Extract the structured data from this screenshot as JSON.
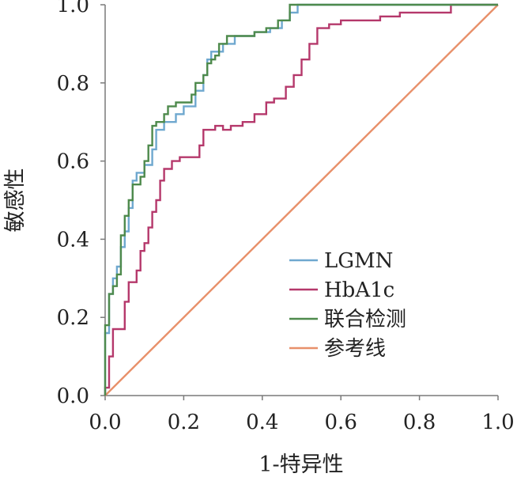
{
  "chart_data": {
    "type": "line",
    "title": "",
    "xlabel": "1-特异性",
    "ylabel": "敏感性",
    "xlim": [
      0,
      1
    ],
    "ylim": [
      0,
      1
    ],
    "x_ticks": [
      "0.0",
      "0.2",
      "0.4",
      "0.6",
      "0.8",
      "1.0"
    ],
    "y_ticks": [
      "0.0",
      "0.2",
      "0.4",
      "0.6",
      "0.8",
      "1.0"
    ],
    "grid": false,
    "legend_position": "bottom-right",
    "series": [
      {
        "name": "LGMN",
        "color": "#6fa8cf",
        "points": [
          [
            0,
            0
          ],
          [
            0,
            0.16
          ],
          [
            0.01,
            0.16
          ],
          [
            0.01,
            0.26
          ],
          [
            0.02,
            0.26
          ],
          [
            0.02,
            0.3
          ],
          [
            0.03,
            0.3
          ],
          [
            0.03,
            0.33
          ],
          [
            0.04,
            0.33
          ],
          [
            0.04,
            0.38
          ],
          [
            0.05,
            0.38
          ],
          [
            0.05,
            0.42
          ],
          [
            0.06,
            0.42
          ],
          [
            0.06,
            0.48
          ],
          [
            0.07,
            0.48
          ],
          [
            0.07,
            0.55
          ],
          [
            0.08,
            0.55
          ],
          [
            0.08,
            0.57
          ],
          [
            0.1,
            0.57
          ],
          [
            0.1,
            0.59
          ],
          [
            0.12,
            0.59
          ],
          [
            0.12,
            0.63
          ],
          [
            0.13,
            0.63
          ],
          [
            0.13,
            0.68
          ],
          [
            0.15,
            0.68
          ],
          [
            0.15,
            0.7
          ],
          [
            0.18,
            0.7
          ],
          [
            0.18,
            0.72
          ],
          [
            0.2,
            0.72
          ],
          [
            0.2,
            0.74
          ],
          [
            0.23,
            0.74
          ],
          [
            0.23,
            0.78
          ],
          [
            0.25,
            0.78
          ],
          [
            0.25,
            0.82
          ],
          [
            0.26,
            0.82
          ],
          [
            0.26,
            0.86
          ],
          [
            0.27,
            0.86
          ],
          [
            0.27,
            0.88
          ],
          [
            0.3,
            0.88
          ],
          [
            0.3,
            0.9
          ],
          [
            0.33,
            0.9
          ],
          [
            0.33,
            0.92
          ],
          [
            0.38,
            0.92
          ],
          [
            0.38,
            0.93
          ],
          [
            0.42,
            0.93
          ],
          [
            0.42,
            0.94
          ],
          [
            0.45,
            0.94
          ],
          [
            0.45,
            0.96
          ],
          [
            0.47,
            0.96
          ],
          [
            0.47,
            0.98
          ],
          [
            0.49,
            0.98
          ],
          [
            0.49,
            1.0
          ],
          [
            1.0,
            1.0
          ]
        ]
      },
      {
        "name": "HbA1c",
        "color": "#b5386b",
        "points": [
          [
            0,
            0
          ],
          [
            0,
            0.02
          ],
          [
            0.01,
            0.02
          ],
          [
            0.01,
            0.1
          ],
          [
            0.02,
            0.1
          ],
          [
            0.02,
            0.17
          ],
          [
            0.05,
            0.17
          ],
          [
            0.05,
            0.24
          ],
          [
            0.06,
            0.24
          ],
          [
            0.06,
            0.29
          ],
          [
            0.08,
            0.29
          ],
          [
            0.08,
            0.32
          ],
          [
            0.09,
            0.32
          ],
          [
            0.09,
            0.37
          ],
          [
            0.1,
            0.37
          ],
          [
            0.1,
            0.39
          ],
          [
            0.11,
            0.39
          ],
          [
            0.11,
            0.43
          ],
          [
            0.12,
            0.43
          ],
          [
            0.12,
            0.47
          ],
          [
            0.13,
            0.47
          ],
          [
            0.13,
            0.5
          ],
          [
            0.14,
            0.5
          ],
          [
            0.14,
            0.55
          ],
          [
            0.15,
            0.55
          ],
          [
            0.15,
            0.58
          ],
          [
            0.17,
            0.58
          ],
          [
            0.17,
            0.6
          ],
          [
            0.19,
            0.6
          ],
          [
            0.19,
            0.61
          ],
          [
            0.24,
            0.61
          ],
          [
            0.24,
            0.64
          ],
          [
            0.25,
            0.64
          ],
          [
            0.25,
            0.68
          ],
          [
            0.28,
            0.68
          ],
          [
            0.28,
            0.69
          ],
          [
            0.3,
            0.69
          ],
          [
            0.3,
            0.68
          ],
          [
            0.32,
            0.68
          ],
          [
            0.32,
            0.69
          ],
          [
            0.35,
            0.69
          ],
          [
            0.35,
            0.7
          ],
          [
            0.38,
            0.7
          ],
          [
            0.38,
            0.72
          ],
          [
            0.41,
            0.72
          ],
          [
            0.41,
            0.75
          ],
          [
            0.43,
            0.75
          ],
          [
            0.43,
            0.76
          ],
          [
            0.46,
            0.76
          ],
          [
            0.46,
            0.79
          ],
          [
            0.48,
            0.79
          ],
          [
            0.48,
            0.82
          ],
          [
            0.5,
            0.82
          ],
          [
            0.5,
            0.86
          ],
          [
            0.52,
            0.86
          ],
          [
            0.52,
            0.9
          ],
          [
            0.54,
            0.9
          ],
          [
            0.54,
            0.94
          ],
          [
            0.57,
            0.94
          ],
          [
            0.57,
            0.95
          ],
          [
            0.6,
            0.95
          ],
          [
            0.6,
            0.96
          ],
          [
            0.7,
            0.96
          ],
          [
            0.7,
            0.97
          ],
          [
            0.75,
            0.97
          ],
          [
            0.75,
            0.98
          ],
          [
            0.88,
            0.98
          ],
          [
            0.88,
            1.0
          ],
          [
            1.0,
            1.0
          ]
        ]
      },
      {
        "name": "联合检测",
        "color": "#4e8a4c",
        "points": [
          [
            0,
            0
          ],
          [
            0,
            0.18
          ],
          [
            0.01,
            0.18
          ],
          [
            0.01,
            0.26
          ],
          [
            0.02,
            0.26
          ],
          [
            0.02,
            0.28
          ],
          [
            0.03,
            0.28
          ],
          [
            0.03,
            0.31
          ],
          [
            0.04,
            0.31
          ],
          [
            0.04,
            0.41
          ],
          [
            0.05,
            0.41
          ],
          [
            0.05,
            0.46
          ],
          [
            0.06,
            0.46
          ],
          [
            0.06,
            0.5
          ],
          [
            0.07,
            0.5
          ],
          [
            0.07,
            0.54
          ],
          [
            0.09,
            0.54
          ],
          [
            0.09,
            0.56
          ],
          [
            0.1,
            0.56
          ],
          [
            0.1,
            0.6
          ],
          [
            0.11,
            0.6
          ],
          [
            0.11,
            0.64
          ],
          [
            0.12,
            0.64
          ],
          [
            0.12,
            0.69
          ],
          [
            0.13,
            0.69
          ],
          [
            0.13,
            0.7
          ],
          [
            0.15,
            0.7
          ],
          [
            0.15,
            0.72
          ],
          [
            0.16,
            0.72
          ],
          [
            0.16,
            0.74
          ],
          [
            0.18,
            0.74
          ],
          [
            0.18,
            0.75
          ],
          [
            0.22,
            0.75
          ],
          [
            0.22,
            0.77
          ],
          [
            0.23,
            0.77
          ],
          [
            0.23,
            0.8
          ],
          [
            0.25,
            0.8
          ],
          [
            0.25,
            0.82
          ],
          [
            0.26,
            0.82
          ],
          [
            0.26,
            0.85
          ],
          [
            0.27,
            0.85
          ],
          [
            0.27,
            0.86
          ],
          [
            0.28,
            0.86
          ],
          [
            0.28,
            0.87
          ],
          [
            0.29,
            0.87
          ],
          [
            0.29,
            0.9
          ],
          [
            0.31,
            0.9
          ],
          [
            0.31,
            0.92
          ],
          [
            0.38,
            0.92
          ],
          [
            0.38,
            0.93
          ],
          [
            0.41,
            0.93
          ],
          [
            0.41,
            0.94
          ],
          [
            0.44,
            0.94
          ],
          [
            0.44,
            0.96
          ],
          [
            0.47,
            0.96
          ],
          [
            0.47,
            1.0
          ],
          [
            1.0,
            1.0
          ]
        ]
      },
      {
        "name": "参考线",
        "color": "#e8906a",
        "points": [
          [
            0,
            0
          ],
          [
            1,
            1
          ]
        ]
      }
    ]
  }
}
